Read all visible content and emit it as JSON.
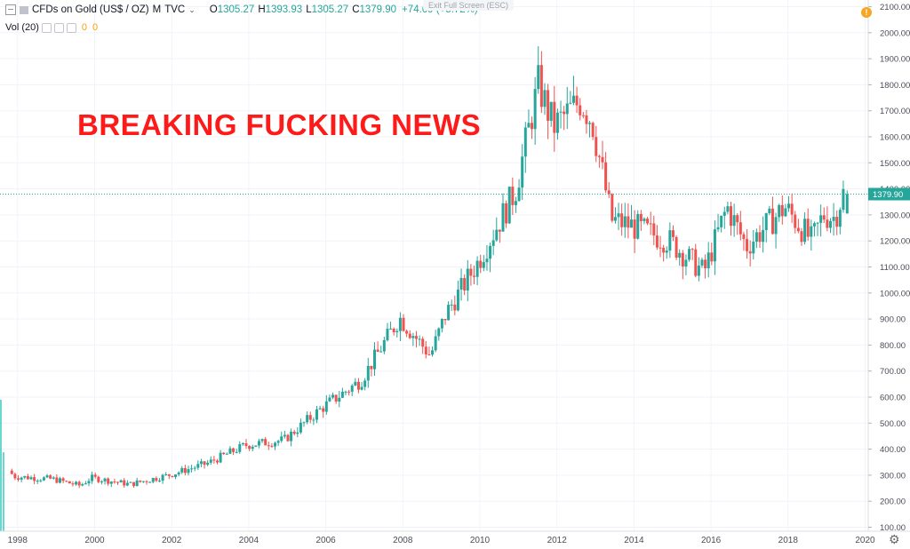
{
  "legend": {
    "symbol": "CFDs on Gold (US$ / OZ)",
    "interval": "M",
    "source": "TVC",
    "open_label": "O",
    "open": "1305.27",
    "high_label": "H",
    "high": "1393.93",
    "low_label": "L",
    "low": "1305.27",
    "close_label": "C",
    "close": "1379.90",
    "change": "+74.69 (+5.72%)"
  },
  "volume": {
    "label": "Vol (20)",
    "value1": "0",
    "value2": "0"
  },
  "exit_fullscreen": "Exit Full Screen (ESC)",
  "alert_badge": "!",
  "headline": "BREAKING FUCKING NEWS",
  "colors": {
    "up": "#26a69a",
    "down": "#ef5350",
    "headline": "#ff1a1a",
    "price_line": "#26a69a"
  },
  "icons": {
    "settings": "gear-icon",
    "collapse": "square-minus-icon"
  },
  "chart_data": {
    "type": "candlestick",
    "ylim": [
      100,
      2100
    ],
    "y_ticks": [
      "100.00",
      "200.00",
      "300.00",
      "400.00",
      "500.00",
      "600.00",
      "700.00",
      "800.00",
      "900.00",
      "1000.00",
      "1100.00",
      "1200.00",
      "1300.00",
      "1400.00",
      "1500.00",
      "1600.00",
      "1700.00",
      "1800.00",
      "1900.00",
      "2000.00",
      "2100.00"
    ],
    "x_ticks": [
      "1998",
      "2000",
      "2002",
      "2004",
      "2006",
      "2008",
      "2010",
      "2012",
      "2014",
      "2016",
      "2018",
      "2020"
    ],
    "last_price": "1379.90",
    "annual_path": [
      {
        "year": 1997.8,
        "price": 325
      },
      {
        "year": 1998.0,
        "price": 295
      },
      {
        "year": 1999.0,
        "price": 285
      },
      {
        "year": 1999.7,
        "price": 260
      },
      {
        "year": 2000.0,
        "price": 290
      },
      {
        "year": 2001.0,
        "price": 265
      },
      {
        "year": 2002.0,
        "price": 300
      },
      {
        "year": 2003.0,
        "price": 345
      },
      {
        "year": 2004.0,
        "price": 415
      },
      {
        "year": 2005.0,
        "price": 435
      },
      {
        "year": 2006.0,
        "price": 560
      },
      {
        "year": 2007.0,
        "price": 665
      },
      {
        "year": 2008.0,
        "price": 905
      },
      {
        "year": 2008.8,
        "price": 760
      },
      {
        "year": 2009.2,
        "price": 920
      },
      {
        "year": 2010.0,
        "price": 1110
      },
      {
        "year": 2011.0,
        "price": 1390
      },
      {
        "year": 2011.6,
        "price": 1800
      },
      {
        "year": 2012.0,
        "price": 1640
      },
      {
        "year": 2012.7,
        "price": 1740
      },
      {
        "year": 2013.0,
        "price": 1660
      },
      {
        "year": 2013.5,
        "price": 1280
      },
      {
        "year": 2014.0,
        "price": 1260
      },
      {
        "year": 2015.0,
        "price": 1200
      },
      {
        "year": 2015.9,
        "price": 1080
      },
      {
        "year": 2016.5,
        "price": 1330
      },
      {
        "year": 2017.0,
        "price": 1180
      },
      {
        "year": 2018.0,
        "price": 1330
      },
      {
        "year": 2018.7,
        "price": 1200
      },
      {
        "year": 2019.0,
        "price": 1300
      },
      {
        "year": 2019.3,
        "price": 1290
      },
      {
        "year": 2019.5,
        "price": 1380
      }
    ],
    "volume_bars": [
      {
        "year": 1997.8,
        "volume": 1.0
      },
      {
        "year": 1997.9,
        "volume": 0.6
      }
    ]
  }
}
